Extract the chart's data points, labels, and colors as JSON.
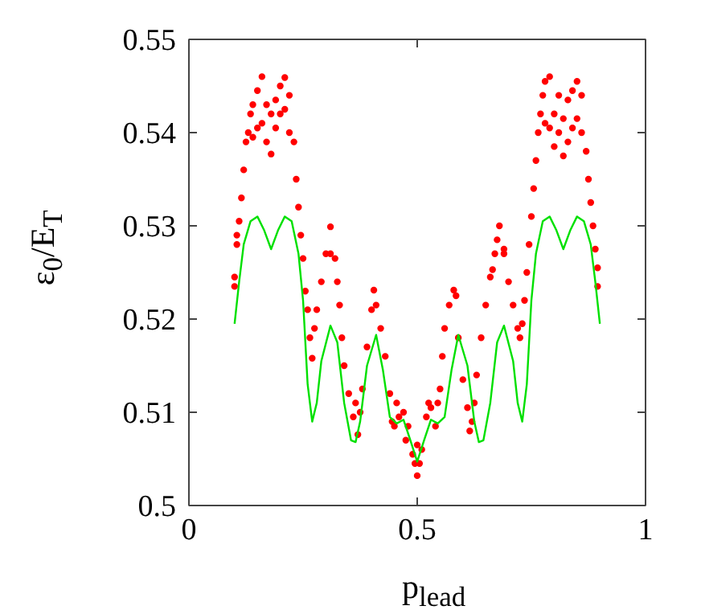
{
  "chart_data": {
    "type": "scatter",
    "xlabel": "p$_{lead}$",
    "ylabel": "ε$_{0}$/E$_{T}$",
    "xlim": [
      0,
      1
    ],
    "xticks": [
      0,
      0.5,
      1
    ],
    "ylim": [
      0.5,
      0.55
    ],
    "yticks": [
      0.5,
      0.51,
      0.52,
      0.53,
      0.54,
      0.55
    ],
    "grid": false,
    "series": [
      {
        "marker": "circle",
        "color": "#ff0000",
        "x": [
          0.1,
          0.1,
          0.105,
          0.105,
          0.11,
          0.115,
          0.12,
          0.125,
          0.13,
          0.135,
          0.14,
          0.14,
          0.15,
          0.15,
          0.16,
          0.16,
          0.17,
          0.17,
          0.18,
          0.18,
          0.19,
          0.19,
          0.2,
          0.2,
          0.21,
          0.21,
          0.22,
          0.22,
          0.23,
          0.235,
          0.24,
          0.245,
          0.25,
          0.255,
          0.26,
          0.265,
          0.27,
          0.275,
          0.28,
          0.29,
          0.3,
          0.31,
          0.31,
          0.32,
          0.325,
          0.33,
          0.335,
          0.34,
          0.35,
          0.36,
          0.365,
          0.37,
          0.375,
          0.38,
          0.39,
          0.4,
          0.405,
          0.41,
          0.42,
          0.43,
          0.44,
          0.445,
          0.45,
          0.455,
          0.46,
          0.47,
          0.475,
          0.48,
          0.49,
          0.495,
          0.5,
          0.5,
          0.505,
          0.51,
          0.52,
          0.525,
          0.53,
          0.54,
          0.545,
          0.55,
          0.555,
          0.56,
          0.57,
          0.58,
          0.585,
          0.59,
          0.6,
          0.61,
          0.615,
          0.62,
          0.625,
          0.63,
          0.64,
          0.65,
          0.66,
          0.665,
          0.67,
          0.675,
          0.68,
          0.69,
          0.69,
          0.7,
          0.71,
          0.72,
          0.725,
          0.73,
          0.735,
          0.74,
          0.745,
          0.75,
          0.755,
          0.76,
          0.765,
          0.77,
          0.775,
          0.78,
          0.78,
          0.79,
          0.79,
          0.8,
          0.8,
          0.81,
          0.81,
          0.82,
          0.82,
          0.83,
          0.83,
          0.84,
          0.84,
          0.85,
          0.85,
          0.86,
          0.86,
          0.87,
          0.875,
          0.88,
          0.885,
          0.89,
          0.895,
          0.895
        ],
        "values": [
          0.5235,
          0.5245,
          0.528,
          0.529,
          0.5305,
          0.533,
          0.536,
          0.539,
          0.54,
          0.542,
          0.5395,
          0.543,
          0.5405,
          0.5445,
          0.546,
          0.541,
          0.543,
          0.539,
          0.5377,
          0.542,
          0.5405,
          0.5435,
          0.542,
          0.545,
          0.5459,
          0.5425,
          0.544,
          0.54,
          0.539,
          0.535,
          0.532,
          0.529,
          0.5265,
          0.523,
          0.521,
          0.518,
          0.5158,
          0.519,
          0.521,
          0.524,
          0.527,
          0.5299,
          0.527,
          0.5265,
          0.524,
          0.5215,
          0.518,
          0.515,
          0.512,
          0.5095,
          0.511,
          0.5076,
          0.51,
          0.5125,
          0.517,
          0.521,
          0.5231,
          0.5215,
          0.519,
          0.516,
          0.512,
          0.509,
          0.5085,
          0.511,
          0.5095,
          0.51,
          0.507,
          0.5085,
          0.5055,
          0.5045,
          0.5032,
          0.5065,
          0.5045,
          0.506,
          0.5095,
          0.511,
          0.5105,
          0.5085,
          0.511,
          0.5125,
          0.516,
          0.519,
          0.5215,
          0.5231,
          0.5225,
          0.518,
          0.5135,
          0.5105,
          0.508,
          0.509,
          0.511,
          0.514,
          0.518,
          0.5215,
          0.5245,
          0.5253,
          0.527,
          0.5285,
          0.53,
          0.527,
          0.5275,
          0.524,
          0.5215,
          0.519,
          0.518,
          0.5195,
          0.522,
          0.525,
          0.528,
          0.531,
          0.534,
          0.537,
          0.54,
          0.542,
          0.544,
          0.5455,
          0.541,
          0.546,
          0.5405,
          0.542,
          0.5385,
          0.544,
          0.54,
          0.5375,
          0.5415,
          0.539,
          0.5435,
          0.5445,
          0.5405,
          0.5455,
          0.5415,
          0.544,
          0.54,
          0.538,
          0.535,
          0.5325,
          0.53,
          0.5275,
          0.5235,
          0.5255
        ]
      },
      {
        "type": "line",
        "color": "#00e000",
        "x": [
          0.1,
          0.11,
          0.12,
          0.135,
          0.15,
          0.165,
          0.18,
          0.195,
          0.21,
          0.225,
          0.24,
          0.25,
          0.26,
          0.27,
          0.28,
          0.29,
          0.31,
          0.325,
          0.34,
          0.355,
          0.365,
          0.375,
          0.39,
          0.41,
          0.425,
          0.44,
          0.455,
          0.47,
          0.485,
          0.5,
          0.515,
          0.53,
          0.545,
          0.56,
          0.575,
          0.59,
          0.61,
          0.625,
          0.635,
          0.645,
          0.66,
          0.675,
          0.69,
          0.71,
          0.72,
          0.73,
          0.74,
          0.75,
          0.76,
          0.775,
          0.79,
          0.805,
          0.82,
          0.835,
          0.85,
          0.865,
          0.88,
          0.89,
          0.9
        ],
        "values": [
          0.5195,
          0.524,
          0.528,
          0.5305,
          0.531,
          0.5295,
          0.5275,
          0.5295,
          0.531,
          0.5305,
          0.527,
          0.522,
          0.513,
          0.509,
          0.511,
          0.5155,
          0.5193,
          0.5175,
          0.511,
          0.507,
          0.5068,
          0.509,
          0.515,
          0.5183,
          0.5145,
          0.5095,
          0.5088,
          0.5092,
          0.507,
          0.5047,
          0.507,
          0.5092,
          0.5088,
          0.5095,
          0.5145,
          0.5183,
          0.515,
          0.509,
          0.5068,
          0.507,
          0.511,
          0.5175,
          0.5193,
          0.5155,
          0.511,
          0.509,
          0.513,
          0.522,
          0.527,
          0.5305,
          0.531,
          0.5295,
          0.5275,
          0.5295,
          0.531,
          0.5305,
          0.528,
          0.524,
          0.5195
        ]
      }
    ]
  }
}
